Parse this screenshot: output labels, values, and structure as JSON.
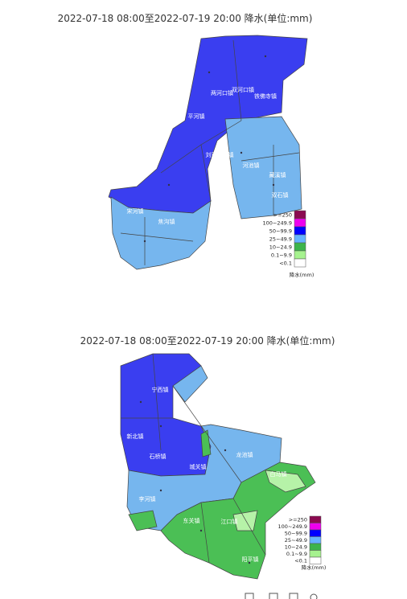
{
  "maps": [
    {
      "title": "2022-07-18 08:00至2022-07-19 20:00 降水(单位:mm)",
      "places": [
        "两河口镇",
        "双河口镇",
        "铁佛寺镇",
        "平河镇",
        "刘家河乡镇",
        "河池镇",
        "藏溪镇",
        "双石镇",
        "宋河镇",
        "焦沟镇"
      ]
    },
    {
      "title": "2022-07-18 08:00至2022-07-19 20:00 降水(单位:mm)",
      "places": [
        "宁西镇",
        "新北镇",
        "石桥镇",
        "城关镇",
        "龙池镇",
        "白马镇",
        "李河镇",
        "东关镇",
        "江口镇",
        "阳平镇"
      ]
    }
  ],
  "legend": {
    "items": [
      {
        "label": ">=250",
        "color": "#8b0a50"
      },
      {
        "label": "100~249.9",
        "color": "#ee00ee"
      },
      {
        "label": "50~99.9",
        "color": "#0000ff"
      },
      {
        "label": "25~49.9",
        "color": "#66b3ff"
      },
      {
        "label": "10~24.9",
        "color": "#3cb44b"
      },
      {
        "label": "0.1~9.9",
        "color": "#a6f28f"
      },
      {
        "label": "<0.1",
        "color": "#ffffff"
      }
    ],
    "unit": "降水(mm)"
  }
}
